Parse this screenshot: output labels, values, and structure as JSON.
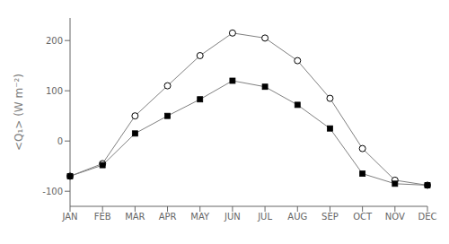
{
  "chart_data": {
    "type": "line",
    "ylabel": "<Q₁>  (W m⁻²)",
    "categories": [
      "JAN",
      "FEB",
      "MAR",
      "APR",
      "MAY",
      "JUN",
      "JUL",
      "AUG",
      "SEP",
      "OCT",
      "NOV",
      "DEC"
    ],
    "series": [
      {
        "color": "#808080",
        "marker": "circle",
        "values": [
          -70,
          -45,
          50,
          110,
          170,
          215,
          205,
          160,
          85,
          -15,
          -78,
          -88
        ]
      },
      {
        "color": "#808080",
        "marker": "square",
        "values": [
          -70,
          -48,
          15,
          50,
          83,
          120,
          108,
          72,
          25,
          -65,
          -85,
          -88
        ]
      }
    ],
    "ylim": [
      -130,
      245
    ],
    "yticks": [
      -100,
      0,
      100,
      200
    ],
    "grid": false
  }
}
